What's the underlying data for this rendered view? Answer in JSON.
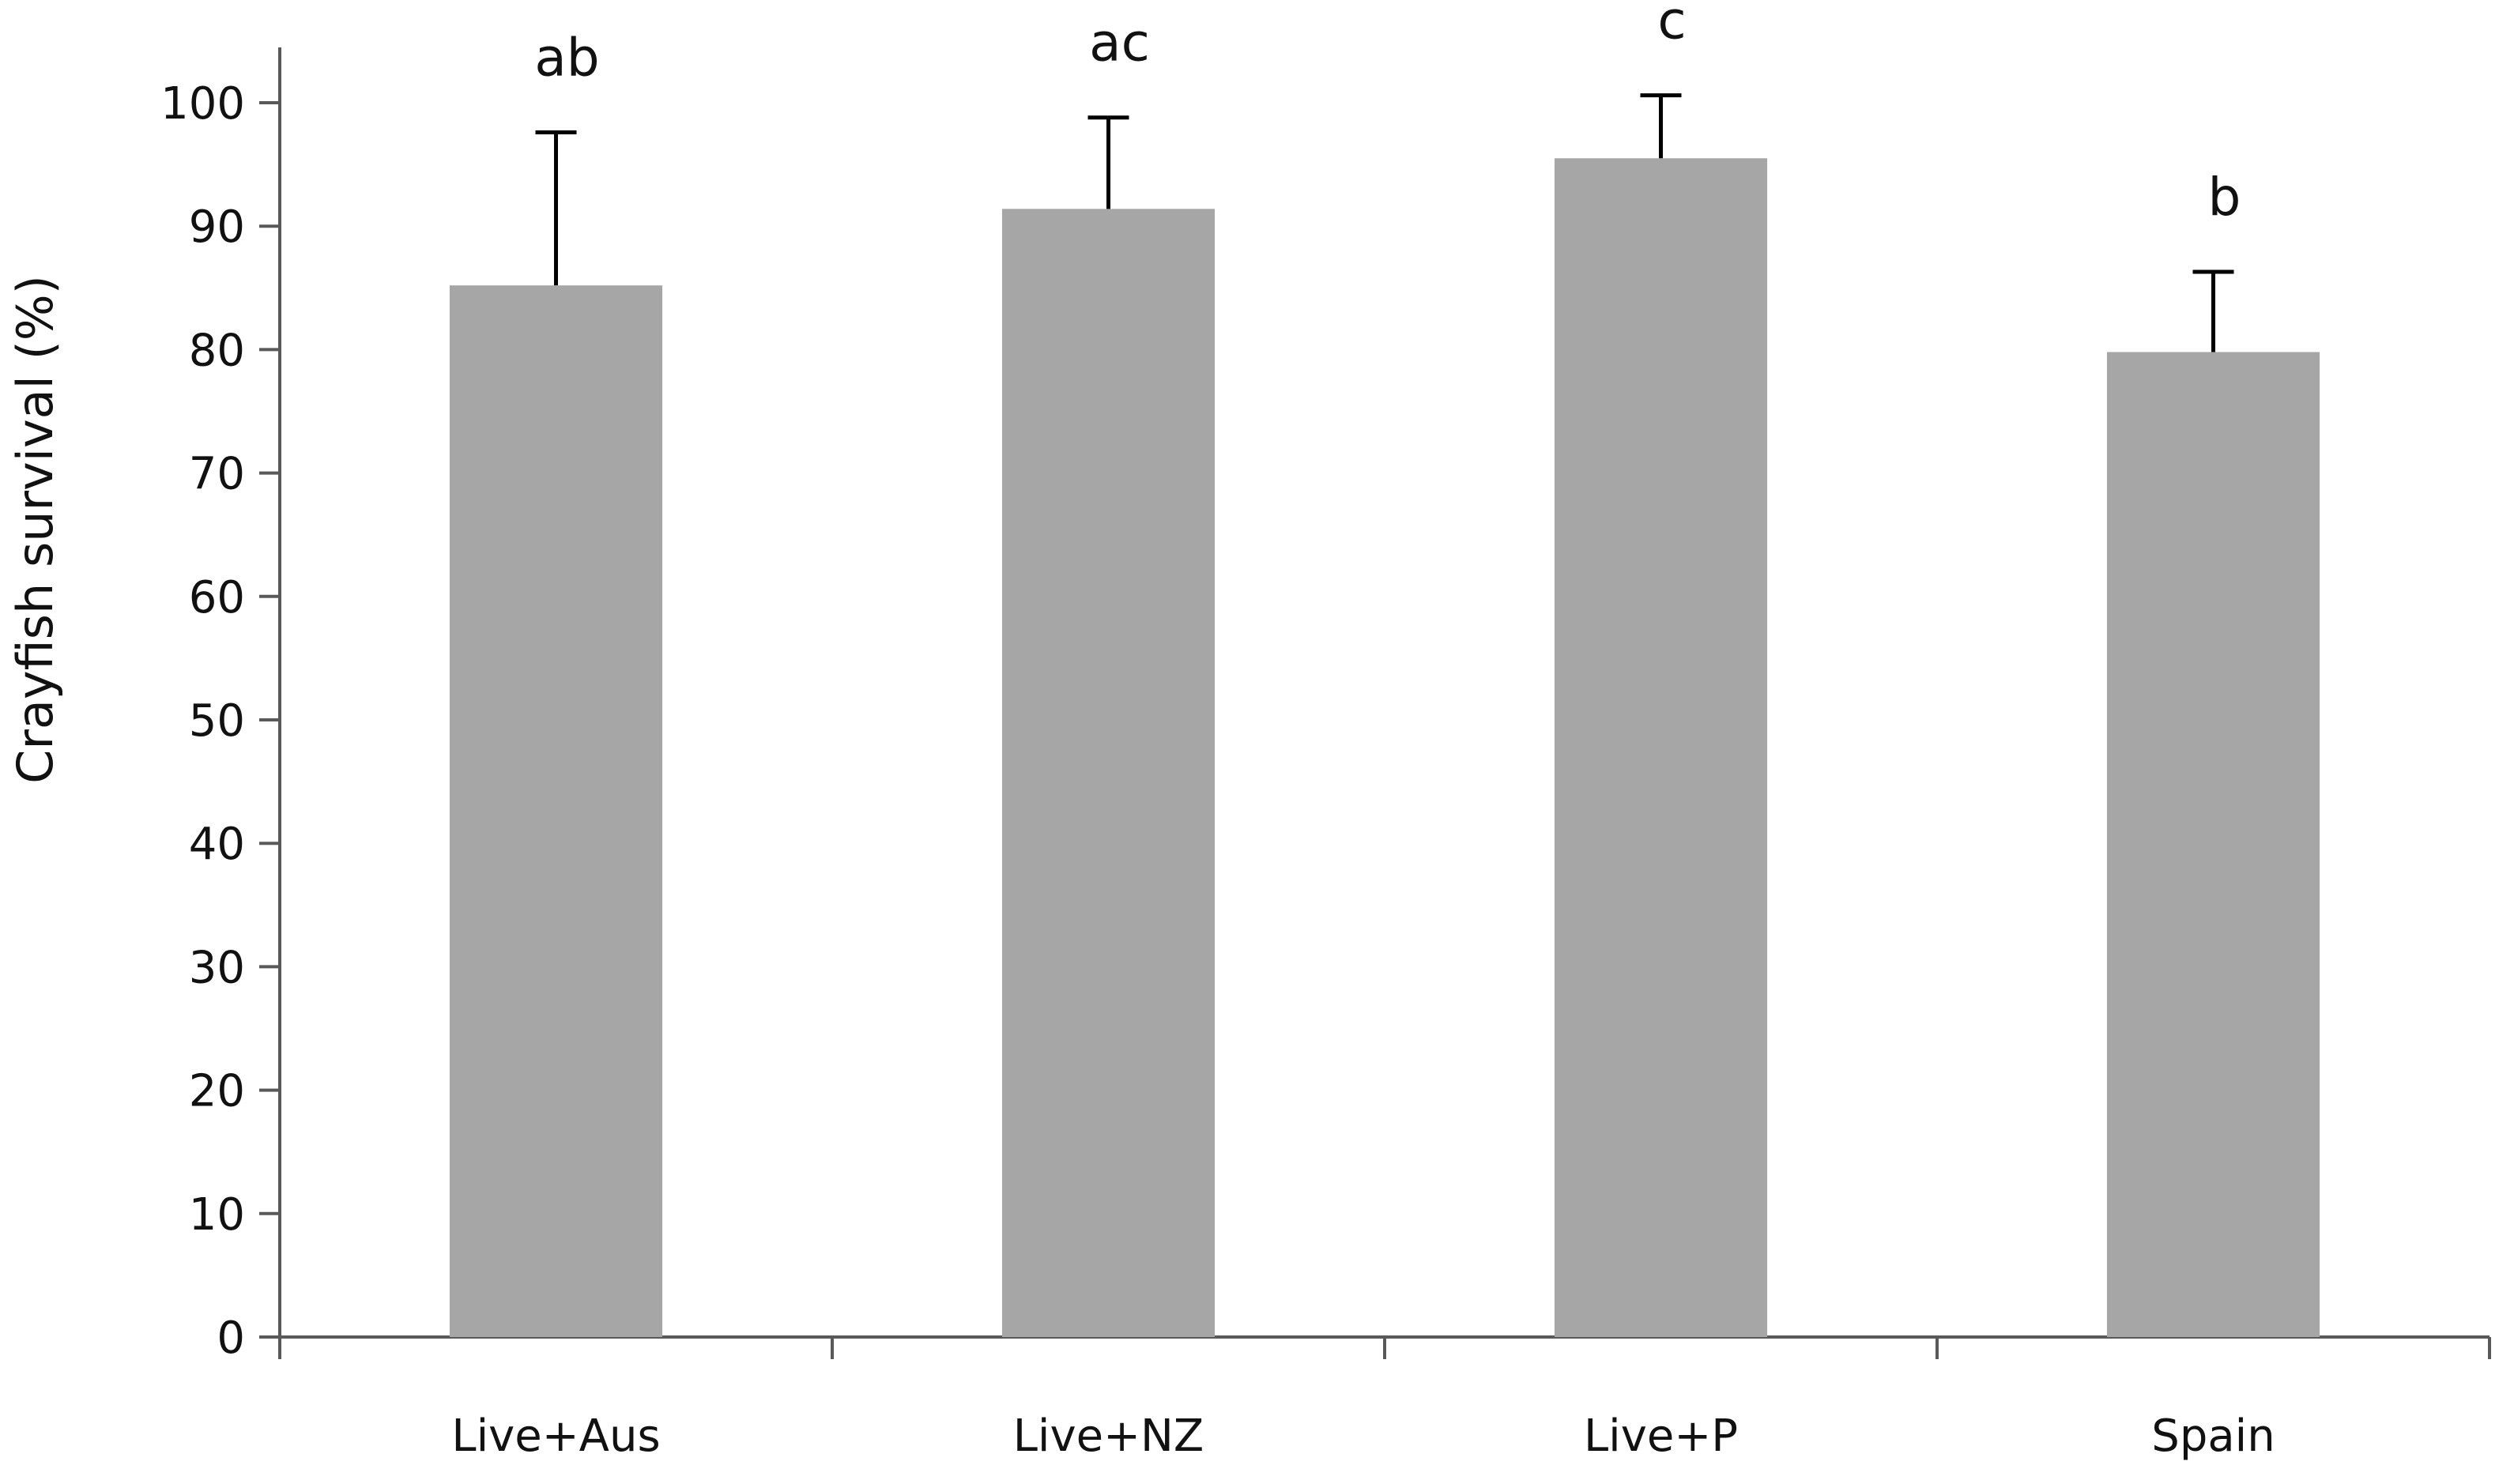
{
  "chart_data": {
    "type": "bar",
    "title": "",
    "xlabel": "",
    "ylabel": "Crayfish survival (%)",
    "categories": [
      "Live+Aus",
      "Live+NZ",
      "Live+P",
      "Spain"
    ],
    "series": [
      {
        "values": [
          85.2,
          91.4,
          95.5,
          79.8
        ],
        "error_upper": [
          12.4,
          7.4,
          5.1,
          6.5
        ],
        "significance_labels": [
          "ab",
          "ac",
          "c",
          "b"
        ]
      }
    ],
    "ylim": [
      0,
      100
    ],
    "yticks": [
      0,
      10,
      20,
      30,
      40,
      50,
      60,
      70,
      80,
      90,
      100
    ],
    "grid": false,
    "legend": "none",
    "colors": {
      "bar": "#a6a6a6",
      "error_bar": "#000000",
      "axis": "#595959",
      "text": "#111111"
    }
  }
}
